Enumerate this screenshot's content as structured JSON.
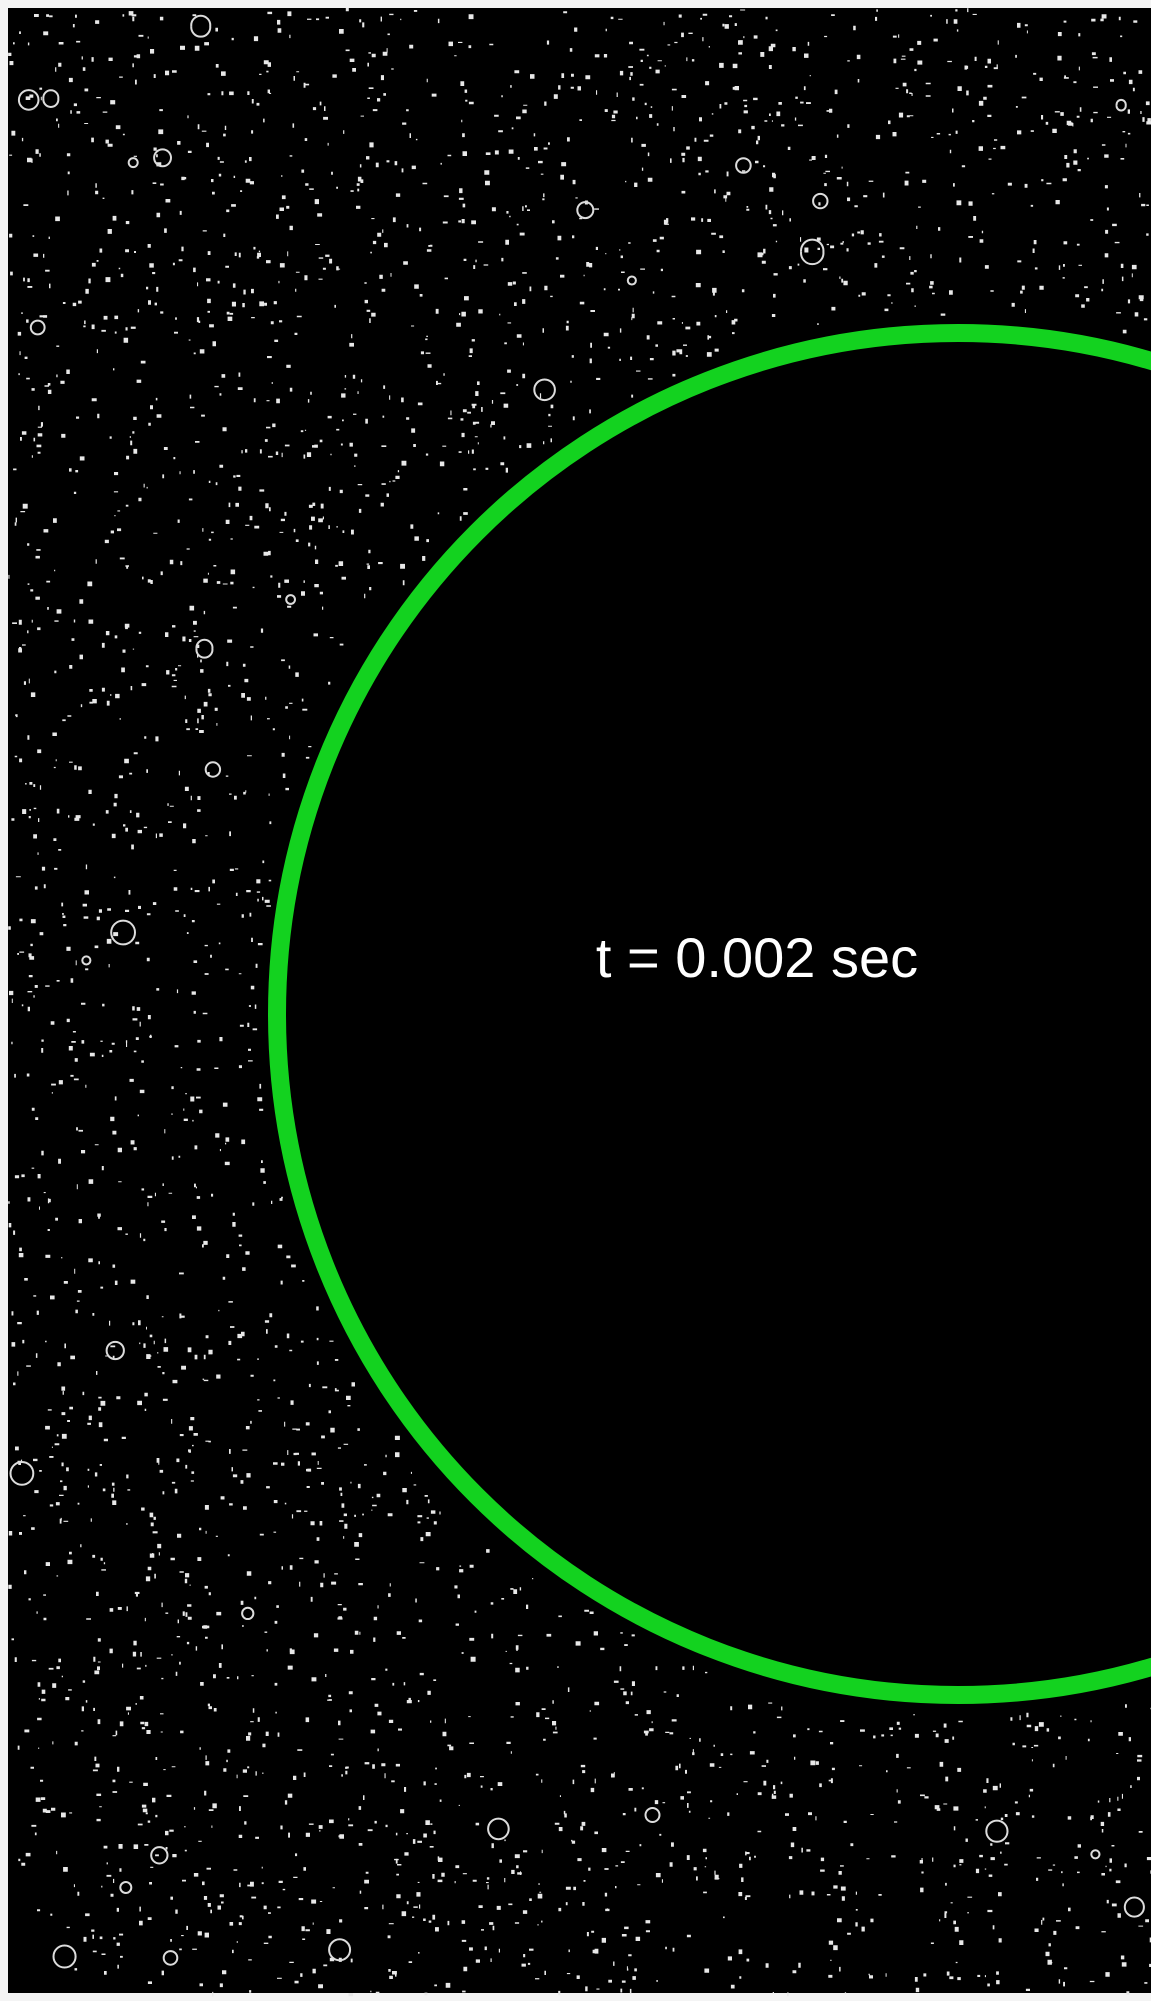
{
  "caption": "t = 0.002 sec"
}
